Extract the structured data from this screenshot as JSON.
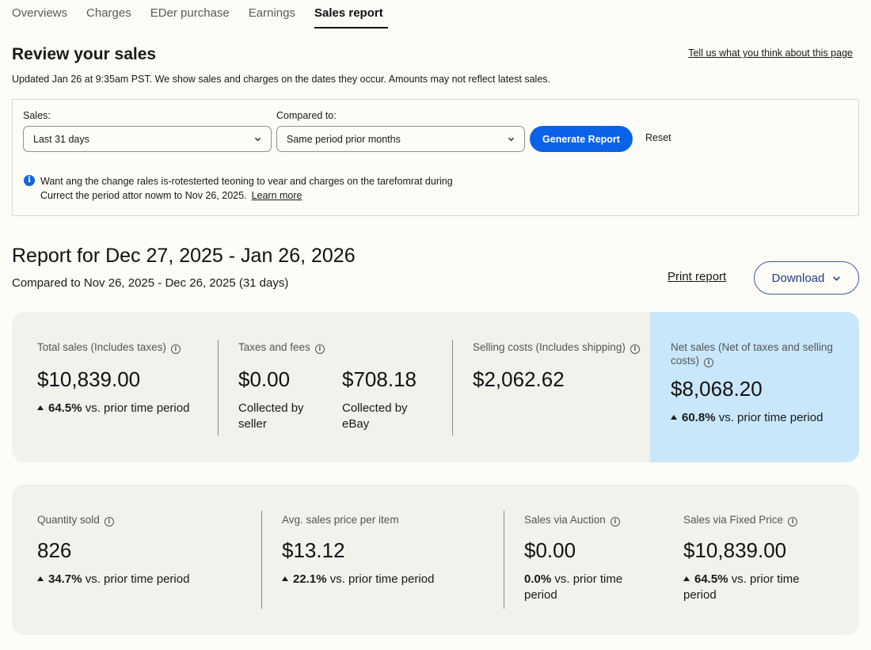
{
  "tabs": [
    {
      "label": "Overviews"
    },
    {
      "label": "Charges"
    },
    {
      "label": "EDer purchase"
    },
    {
      "label": "Earnings"
    },
    {
      "label": "Sales report",
      "active": true
    }
  ],
  "header": {
    "title": "Review your sales",
    "feedback_link": "Tell us what you think about this page",
    "updated": "Updated Jan 26 at 9:35am PST. We show sales and charges on the dates they occur. Amounts may not reflect latest sales."
  },
  "filters": {
    "sales_label": "Sales:",
    "sales_value": "Last 31 days",
    "compare_label": "Compared to:",
    "compare_value": "Same period prior months",
    "generate_label": "Generate Report",
    "reset_label": "Reset",
    "notice_line1": "Want ang the change rales is-rotesterted teoning to vear and charges on the tarefomrat during",
    "notice_line2": "Currect the period attor nowm to Nov 26, 2025.",
    "learn_more": "Learn more"
  },
  "report": {
    "title": "Report for Dec 27, 2025 - Jan 26, 2026",
    "compared": "Compared to Nov 26, 2025 - Dec 26, 2025 (31 days)",
    "print_label": "Print report",
    "download_label": "Download"
  },
  "metrics_top": {
    "total_sales": {
      "label": "Total sales (Includes taxes)",
      "value": "$10,839.00",
      "change": "64.5%",
      "change_text": "vs. prior time period"
    },
    "taxes_fees": {
      "label": "Taxes and fees",
      "seller_value": "$0.00",
      "seller_sub_1": "Collected by",
      "seller_sub_2": "seller",
      "ebay_value": "$708.18",
      "ebay_sub_1": "Collected by",
      "ebay_sub_2": "eBay"
    },
    "selling_costs": {
      "label": "Selling costs (Includes shipping)",
      "value": "$2,062.62"
    },
    "net_sales": {
      "label_1": "Net sales (Net of taxes and selling",
      "label_2": "costs)",
      "value": "$8,068.20",
      "change": "60.8%",
      "change_text": "vs. prior time period"
    }
  },
  "metrics_bottom": {
    "quantity": {
      "label": "Quantity sold",
      "value": "826",
      "change": "34.7%",
      "change_text": "vs. prior time period"
    },
    "avg_price": {
      "label": "Avg. sales price per item",
      "value": "$13.12",
      "change": "22.1%",
      "change_text": "vs. prior time period"
    },
    "auction": {
      "label": "Sales via Auction",
      "value": "$0.00",
      "change": "0.0%",
      "change_text_1": "vs. prior time",
      "change_text_2": "period"
    },
    "fixed_price": {
      "label": "Sales via Fixed Price",
      "value": "$10,839.00",
      "change": "64.5%",
      "change_text_1": "vs. prior time",
      "change_text_2": "period"
    }
  },
  "colors": {
    "accent_blue": "#0a62e8",
    "net_panel": "#c8e7fb",
    "card_bg": "#f2f1ec",
    "page_bg": "#fdfcf7"
  }
}
